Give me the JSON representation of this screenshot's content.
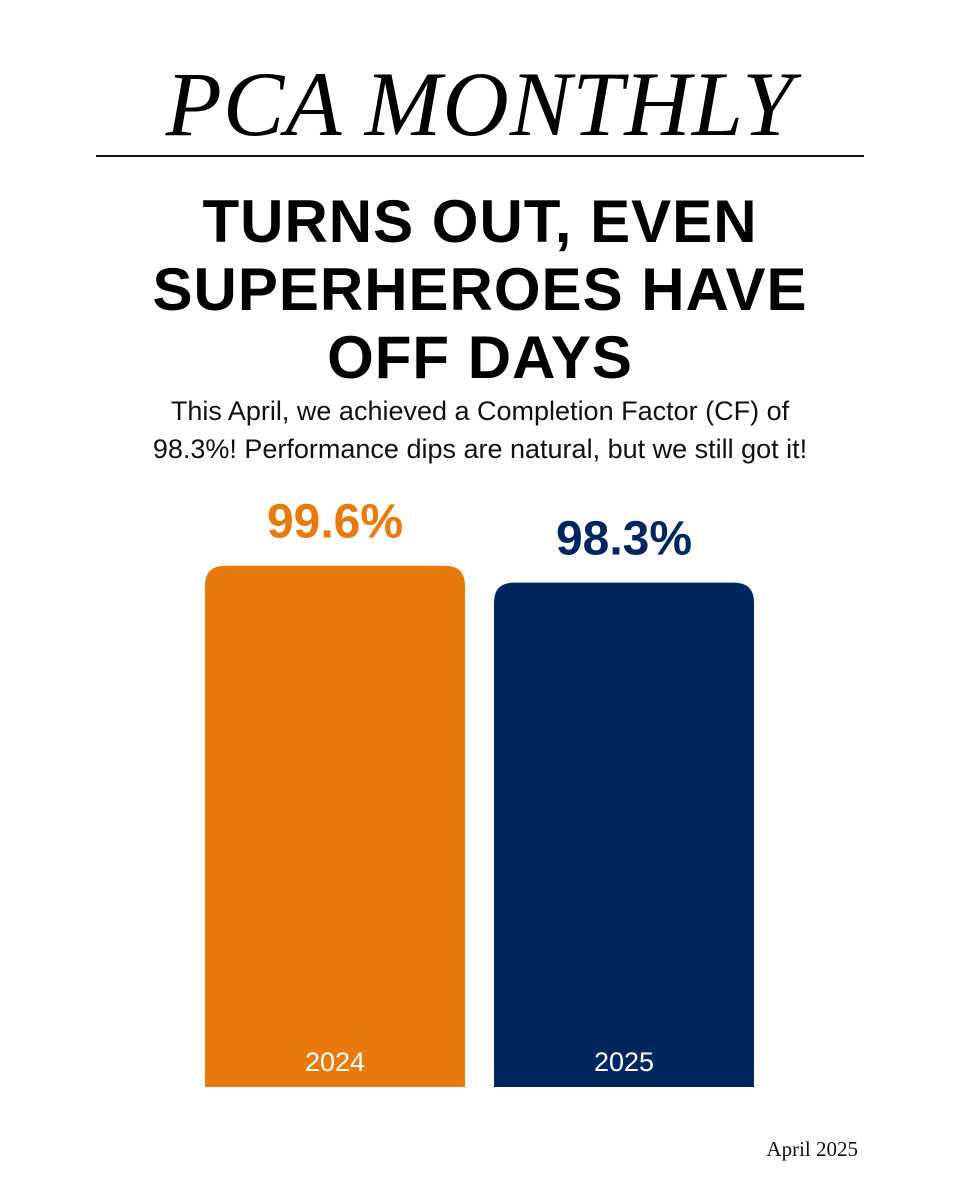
{
  "masthead": "PCA MONTHLY",
  "headline_lines": [
    "TURNS OUT, EVEN",
    "SUPERHEROES HAVE",
    "OFF DAYS"
  ],
  "subtitle_lines": [
    "This April, we achieved a Completion Factor (CF) of",
    "98.3%! Performance dips are natural, but we still got it!"
  ],
  "footer_date": "April 2025",
  "colors": {
    "bar_2024": "#E8790B",
    "bar_2025": "#002660",
    "bar_label": "#ffffff"
  },
  "chart_data": {
    "type": "bar",
    "title": "",
    "xlabel": "",
    "ylabel": "",
    "categories": [
      "2024",
      "2025"
    ],
    "values": [
      99.6,
      98.3
    ],
    "data_labels": [
      "99.6%",
      "98.3%"
    ],
    "grid": false,
    "legend": "none"
  }
}
